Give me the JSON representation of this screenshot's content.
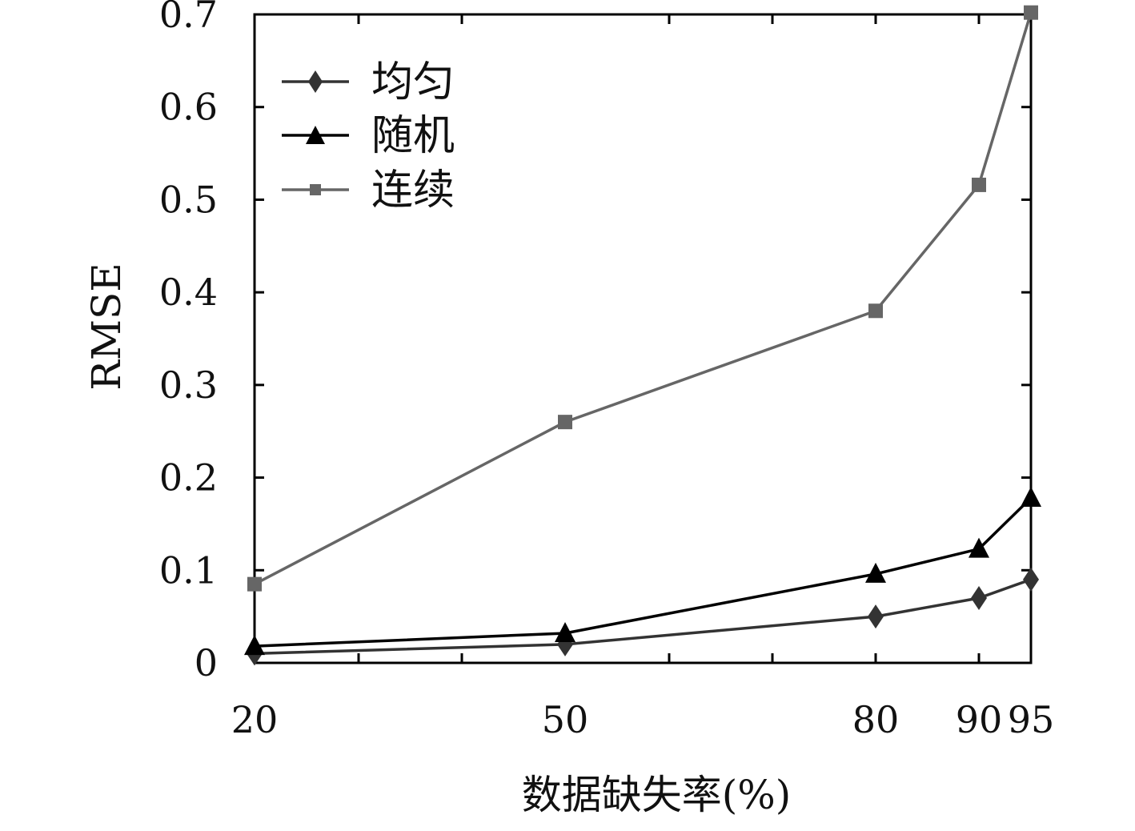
{
  "chart_data": {
    "type": "line",
    "title": "",
    "xlabel": "数据缺失率(%)",
    "ylabel": "RMSE",
    "x_ticks": [
      "20",
      "50",
      "80",
      "90",
      "95"
    ],
    "y_ticks": [
      "0",
      "0.1",
      "0.2",
      "0.3",
      "0.4",
      "0.5",
      "0.6",
      "0.7"
    ],
    "ylim": [
      0,
      0.7
    ],
    "grid": false,
    "legend_position": "top-left",
    "series": [
      {
        "name": "均匀",
        "marker": "diamond",
        "color": "#333333",
        "values": [
          0.01,
          0.02,
          0.05,
          0.07,
          0.09
        ]
      },
      {
        "name": "随机",
        "marker": "triangle",
        "color": "#000000",
        "values": [
          0.018,
          0.032,
          0.096,
          0.123,
          0.178
        ]
      },
      {
        "name": "连续",
        "marker": "square",
        "color": "#666666",
        "values": [
          0.085,
          0.26,
          0.38,
          0.516,
          0.702
        ]
      }
    ]
  }
}
